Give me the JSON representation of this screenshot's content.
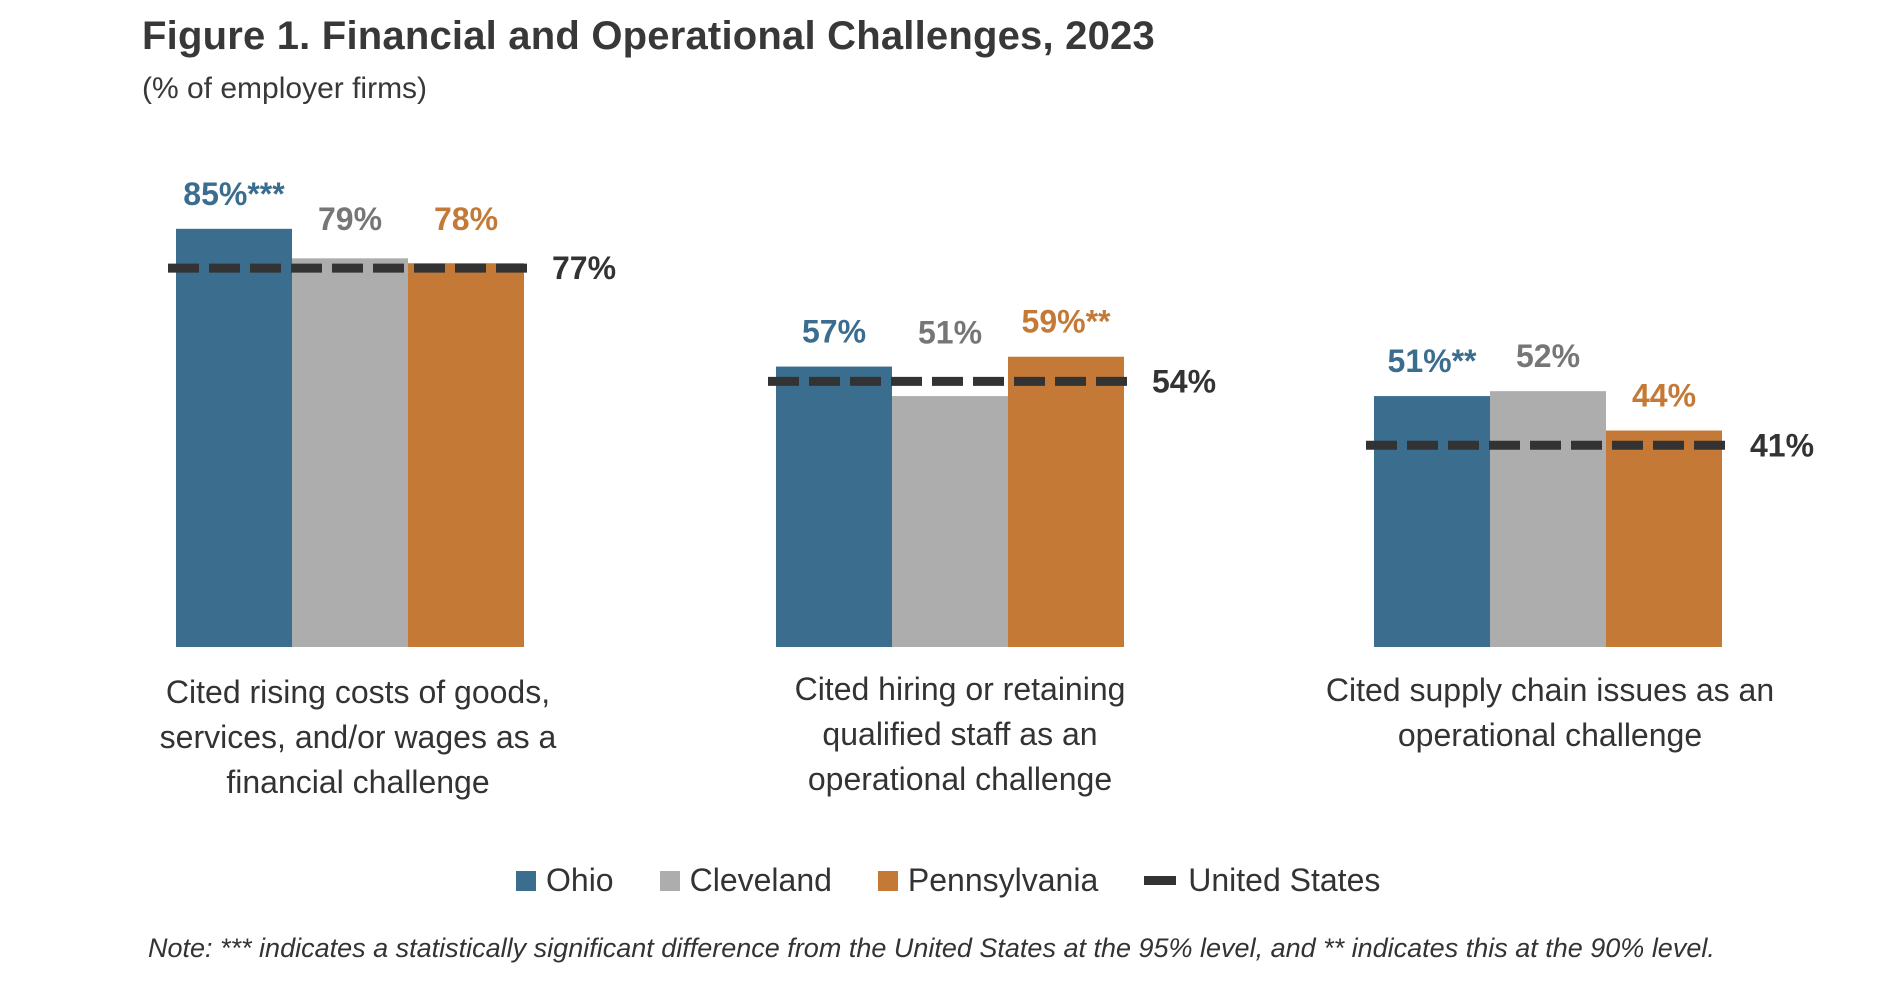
{
  "chart_data": {
    "type": "bar",
    "title": "Figure 1. Financial and Operational Challenges, 2023",
    "subtitle": "(% of employer firms)",
    "xlabel": "",
    "ylabel": "",
    "ylim": [
      0,
      100
    ],
    "grid": false,
    "legend_position": "bottom-center",
    "categories": [
      "Cited rising costs of goods,\nservices, and/or wages as a\nfinancial challenge",
      "Cited hiring or retaining\nqualified staff as an\noperational challenge",
      "Cited supply chain issues as an\noperational challenge"
    ],
    "series": [
      {
        "name": "Ohio",
        "kind": "bar",
        "color": "#3A6D8E",
        "label_color": "#3A6D8E",
        "values": [
          85,
          57,
          51
        ],
        "labels": [
          "85%***",
          "57%",
          "51%**"
        ]
      },
      {
        "name": "Cleveland",
        "kind": "bar",
        "color": "#ADADAD",
        "label_color": "#767676",
        "values": [
          79,
          51,
          52
        ],
        "labels": [
          "79%",
          "51%",
          "52%"
        ]
      },
      {
        "name": "Pennsylvania",
        "kind": "bar",
        "color": "#C47A36",
        "label_color": "#C47A36",
        "values": [
          78,
          59,
          44
        ],
        "labels": [
          "78%",
          "59%**",
          "44%"
        ]
      },
      {
        "name": "United States",
        "kind": "dashed-line",
        "color": "#333333",
        "label_color": "#333333",
        "values": [
          77,
          54,
          41
        ],
        "labels": [
          "77%",
          "54%",
          "41%"
        ]
      }
    ],
    "note": "Note: ***  indicates a statistically significant difference from the United States at the 95% level, and ** indicates this at the 90% level."
  }
}
